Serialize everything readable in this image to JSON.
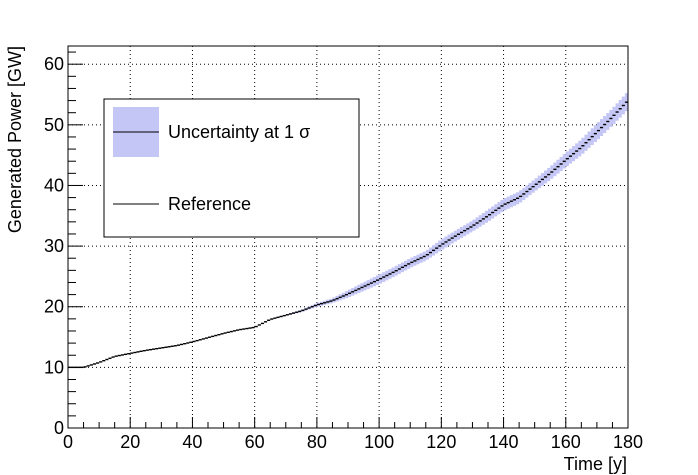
{
  "chart_data": {
    "type": "line",
    "title": "",
    "xlabel": "Time [y]",
    "ylabel": "Generated Power [GW]",
    "xlim": [
      0,
      180
    ],
    "ylim": [
      0,
      63
    ],
    "grid": true,
    "xticks": [
      0,
      20,
      40,
      60,
      80,
      100,
      120,
      140,
      160,
      180
    ],
    "yticks": [
      0,
      10,
      20,
      30,
      40,
      50,
      60
    ],
    "legend": {
      "placement": "top-left",
      "entries": [
        {
          "label": "Uncertainty at 1 σ",
          "kind": "band"
        },
        {
          "label": "Reference",
          "kind": "line"
        }
      ]
    },
    "series": [
      {
        "name": "Reference",
        "x": [
          0,
          5,
          10,
          15,
          20,
          25,
          30,
          35,
          40,
          45,
          50,
          55,
          60,
          65,
          70,
          75,
          80,
          85,
          90,
          95,
          100,
          105,
          110,
          115,
          120,
          125,
          130,
          135,
          140,
          145,
          150,
          155,
          160,
          165,
          170,
          175,
          180
        ],
        "values": [
          10.0,
          10.0,
          10.8,
          11.8,
          12.3,
          12.8,
          13.2,
          13.6,
          14.2,
          14.9,
          15.6,
          16.2,
          16.6,
          17.9,
          18.6,
          19.3,
          20.3,
          21.0,
          22.1,
          23.3,
          24.5,
          25.8,
          27.2,
          28.4,
          30.2,
          31.8,
          33.3,
          35.0,
          36.8,
          38.0,
          40.0,
          42.0,
          44.2,
          46.3,
          48.8,
          51.3,
          54.0
        ]
      },
      {
        "name": "Uncertainty at 1 σ",
        "x": [
          0,
          5,
          10,
          15,
          20,
          25,
          30,
          35,
          40,
          45,
          50,
          55,
          60,
          65,
          70,
          75,
          80,
          85,
          90,
          95,
          100,
          105,
          110,
          115,
          120,
          125,
          130,
          135,
          140,
          145,
          150,
          155,
          160,
          165,
          170,
          175,
          180
        ],
        "lower": [
          10.0,
          10.0,
          10.8,
          11.8,
          12.3,
          12.8,
          13.2,
          13.6,
          14.2,
          14.9,
          15.6,
          16.2,
          16.6,
          17.8,
          18.5,
          19.1,
          20.0,
          20.6,
          21.5,
          22.6,
          23.7,
          25.0,
          26.4,
          27.6,
          29.3,
          30.9,
          32.4,
          34.0,
          35.8,
          37.0,
          39.0,
          40.9,
          43.0,
          45.0,
          47.4,
          49.9,
          52.5
        ],
        "upper": [
          10.0,
          10.0,
          10.8,
          11.8,
          12.3,
          12.8,
          13.2,
          13.6,
          14.2,
          14.9,
          15.6,
          16.2,
          16.6,
          18.0,
          18.7,
          19.5,
          20.6,
          21.4,
          22.7,
          24.0,
          25.3,
          26.6,
          28.0,
          29.2,
          31.1,
          32.7,
          34.2,
          36.0,
          37.8,
          39.0,
          41.0,
          43.1,
          45.4,
          47.6,
          50.2,
          52.7,
          55.5
        ]
      }
    ]
  },
  "colors": {
    "band": "#c4c6f6",
    "line": "#000000",
    "grid": "#000000"
  }
}
